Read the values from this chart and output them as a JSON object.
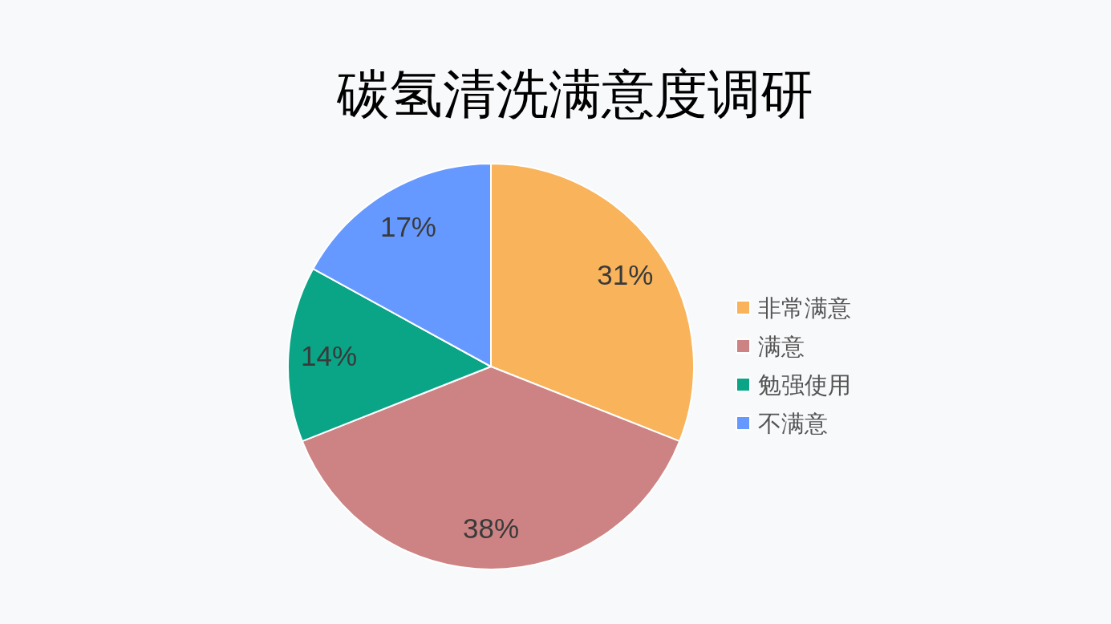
{
  "chart_data": {
    "type": "pie",
    "title": "碳氢清洗满意度调研",
    "categories": [
      "非常满意",
      "满意",
      "勉强使用",
      "不满意"
    ],
    "values": [
      31,
      38,
      14,
      17
    ],
    "value_labels": [
      "31%",
      "38%",
      "14%",
      "17%"
    ],
    "colors": [
      "#f8b35b",
      "#cd8383",
      "#0aa586",
      "#6699ff"
    ],
    "legend": "right"
  }
}
